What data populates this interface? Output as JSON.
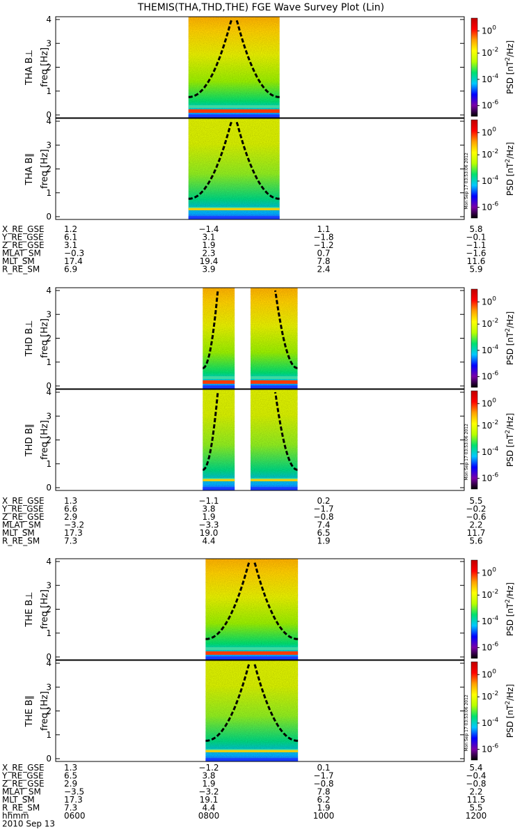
{
  "title": "THEMIS(THA,THD,THE) FGE Wave Survey Plot (Lin)",
  "chart_data": {
    "type": "heatmap",
    "title": "THEMIS(THA,THD,THE) FGE Wave Survey Plot (Lin)",
    "x_axis": {
      "tick_labels": [
        "0600",
        "0800",
        "1000",
        "1200"
      ],
      "label": "hhmm",
      "date": "2010 Sep 13",
      "xlim": [
        "0600",
        "1200"
      ]
    },
    "y_axis": {
      "label": "freq [Hz]",
      "ylim": [
        0,
        4
      ],
      "tick_labels": [
        "0",
        "1",
        "2",
        "3",
        "4"
      ]
    },
    "colorbar": {
      "label": "PSD [nT²/Hz]",
      "label_base": "PSD [nT",
      "label_exp": "2",
      "label_tail": "/Hz]",
      "scale": "log",
      "ticks": [
        {
          "base": "10",
          "exp": "0"
        },
        {
          "base": "10",
          "exp": "-2"
        },
        {
          "base": "10",
          "exp": "-4"
        },
        {
          "base": "10",
          "exp": "-6"
        }
      ],
      "colors": [
        "#000000",
        "#7a00a8",
        "#0000ff",
        "#00c8ff",
        "#00e070",
        "#b8ff00",
        "#ffff00",
        "#ffa000",
        "#ff0000",
        "#c00000"
      ]
    },
    "stamp": "Mon Sep 17 03:53:06 2012",
    "groups": [
      {
        "name": "THA",
        "panels": [
          {
            "label": "THA B⊥",
            "data_ranges": [
              [
                0.325,
                0.548
              ]
            ],
            "red_band": true
          },
          {
            "label": "THA B∥",
            "data_ranges": [
              [
                0.325,
                0.548
              ]
            ],
            "red_band": false
          }
        ],
        "ephemeris": {
          "labels": [
            "X_RE_GSE",
            "Y_RE_GSE",
            "Z_RE_GSE",
            "MLAT_SM",
            "MLT_SM",
            "R_RE_SM"
          ],
          "columns": [
            [
              "1.2",
              "6.1",
              "3.1",
              "−0.3",
              "17.4",
              "6.9"
            ],
            [
              "−1.4",
              "3.1",
              "1.9",
              "2.3",
              "19.4",
              "3.9"
            ],
            [
              "1.1",
              "−1.8",
              "−1.2",
              "0.7",
              "7.8",
              "2.4"
            ],
            [
              "5.8",
              "−0.1",
              "−1.1",
              "−1.6",
              "11.6",
              "5.9"
            ]
          ]
        }
      },
      {
        "name": "THD",
        "panels": [
          {
            "label": "THD B⊥",
            "data_ranges": [
              [
                0.36,
                0.438
              ],
              [
                0.477,
                0.592
              ]
            ],
            "red_band": true
          },
          {
            "label": "THD B∥",
            "data_ranges": [
              [
                0.36,
                0.438
              ],
              [
                0.477,
                0.592
              ]
            ],
            "red_band": false
          }
        ],
        "ephemeris": {
          "labels": [
            "X_RE_GSE",
            "Y_RE_GSE",
            "Z_RE_GSE",
            "MLAT_SM",
            "MLT_SM",
            "R_RE_SM"
          ],
          "columns": [
            [
              "1.3",
              "6.6",
              "2.9",
              "−3.2",
              "17.3",
              "7.3"
            ],
            [
              "−1.1",
              "3.8",
              "1.9",
              "−3.3",
              "19.0",
              "4.4"
            ],
            [
              "0.2",
              "−1.7",
              "−0.8",
              "7.4",
              "6.5",
              "1.9"
            ],
            [
              "5.5",
              "−0.2",
              "−0.6",
              "2.2",
              "11.7",
              "5.6"
            ]
          ]
        }
      },
      {
        "name": "THE",
        "panels": [
          {
            "label": "THE B⊥",
            "data_ranges": [
              [
                0.367,
                0.593
              ]
            ],
            "red_band": true
          },
          {
            "label": "THE B∥",
            "data_ranges": [
              [
                0.367,
                0.593
              ]
            ],
            "red_band": false
          }
        ],
        "ephemeris": {
          "labels": [
            "X_RE_GSE",
            "Y_RE_GSE",
            "Z_RE_GSE",
            "MLAT_SM",
            "MLT_SM",
            "R_RE_SM"
          ],
          "columns": [
            [
              "1.3",
              "6.5",
              "2.9",
              "−3.5",
              "17.3",
              "7.3"
            ],
            [
              "−1.2",
              "3.8",
              "1.9",
              "−3.2",
              "19.1",
              "4.4"
            ],
            [
              "0.1",
              "−1.7",
              "−0.8",
              "7.8",
              "6.2",
              "1.9"
            ],
            [
              "5.4",
              "−0.4",
              "−0.8",
              "2.2",
              "11.5",
              "5.5"
            ]
          ]
        }
      }
    ]
  }
}
